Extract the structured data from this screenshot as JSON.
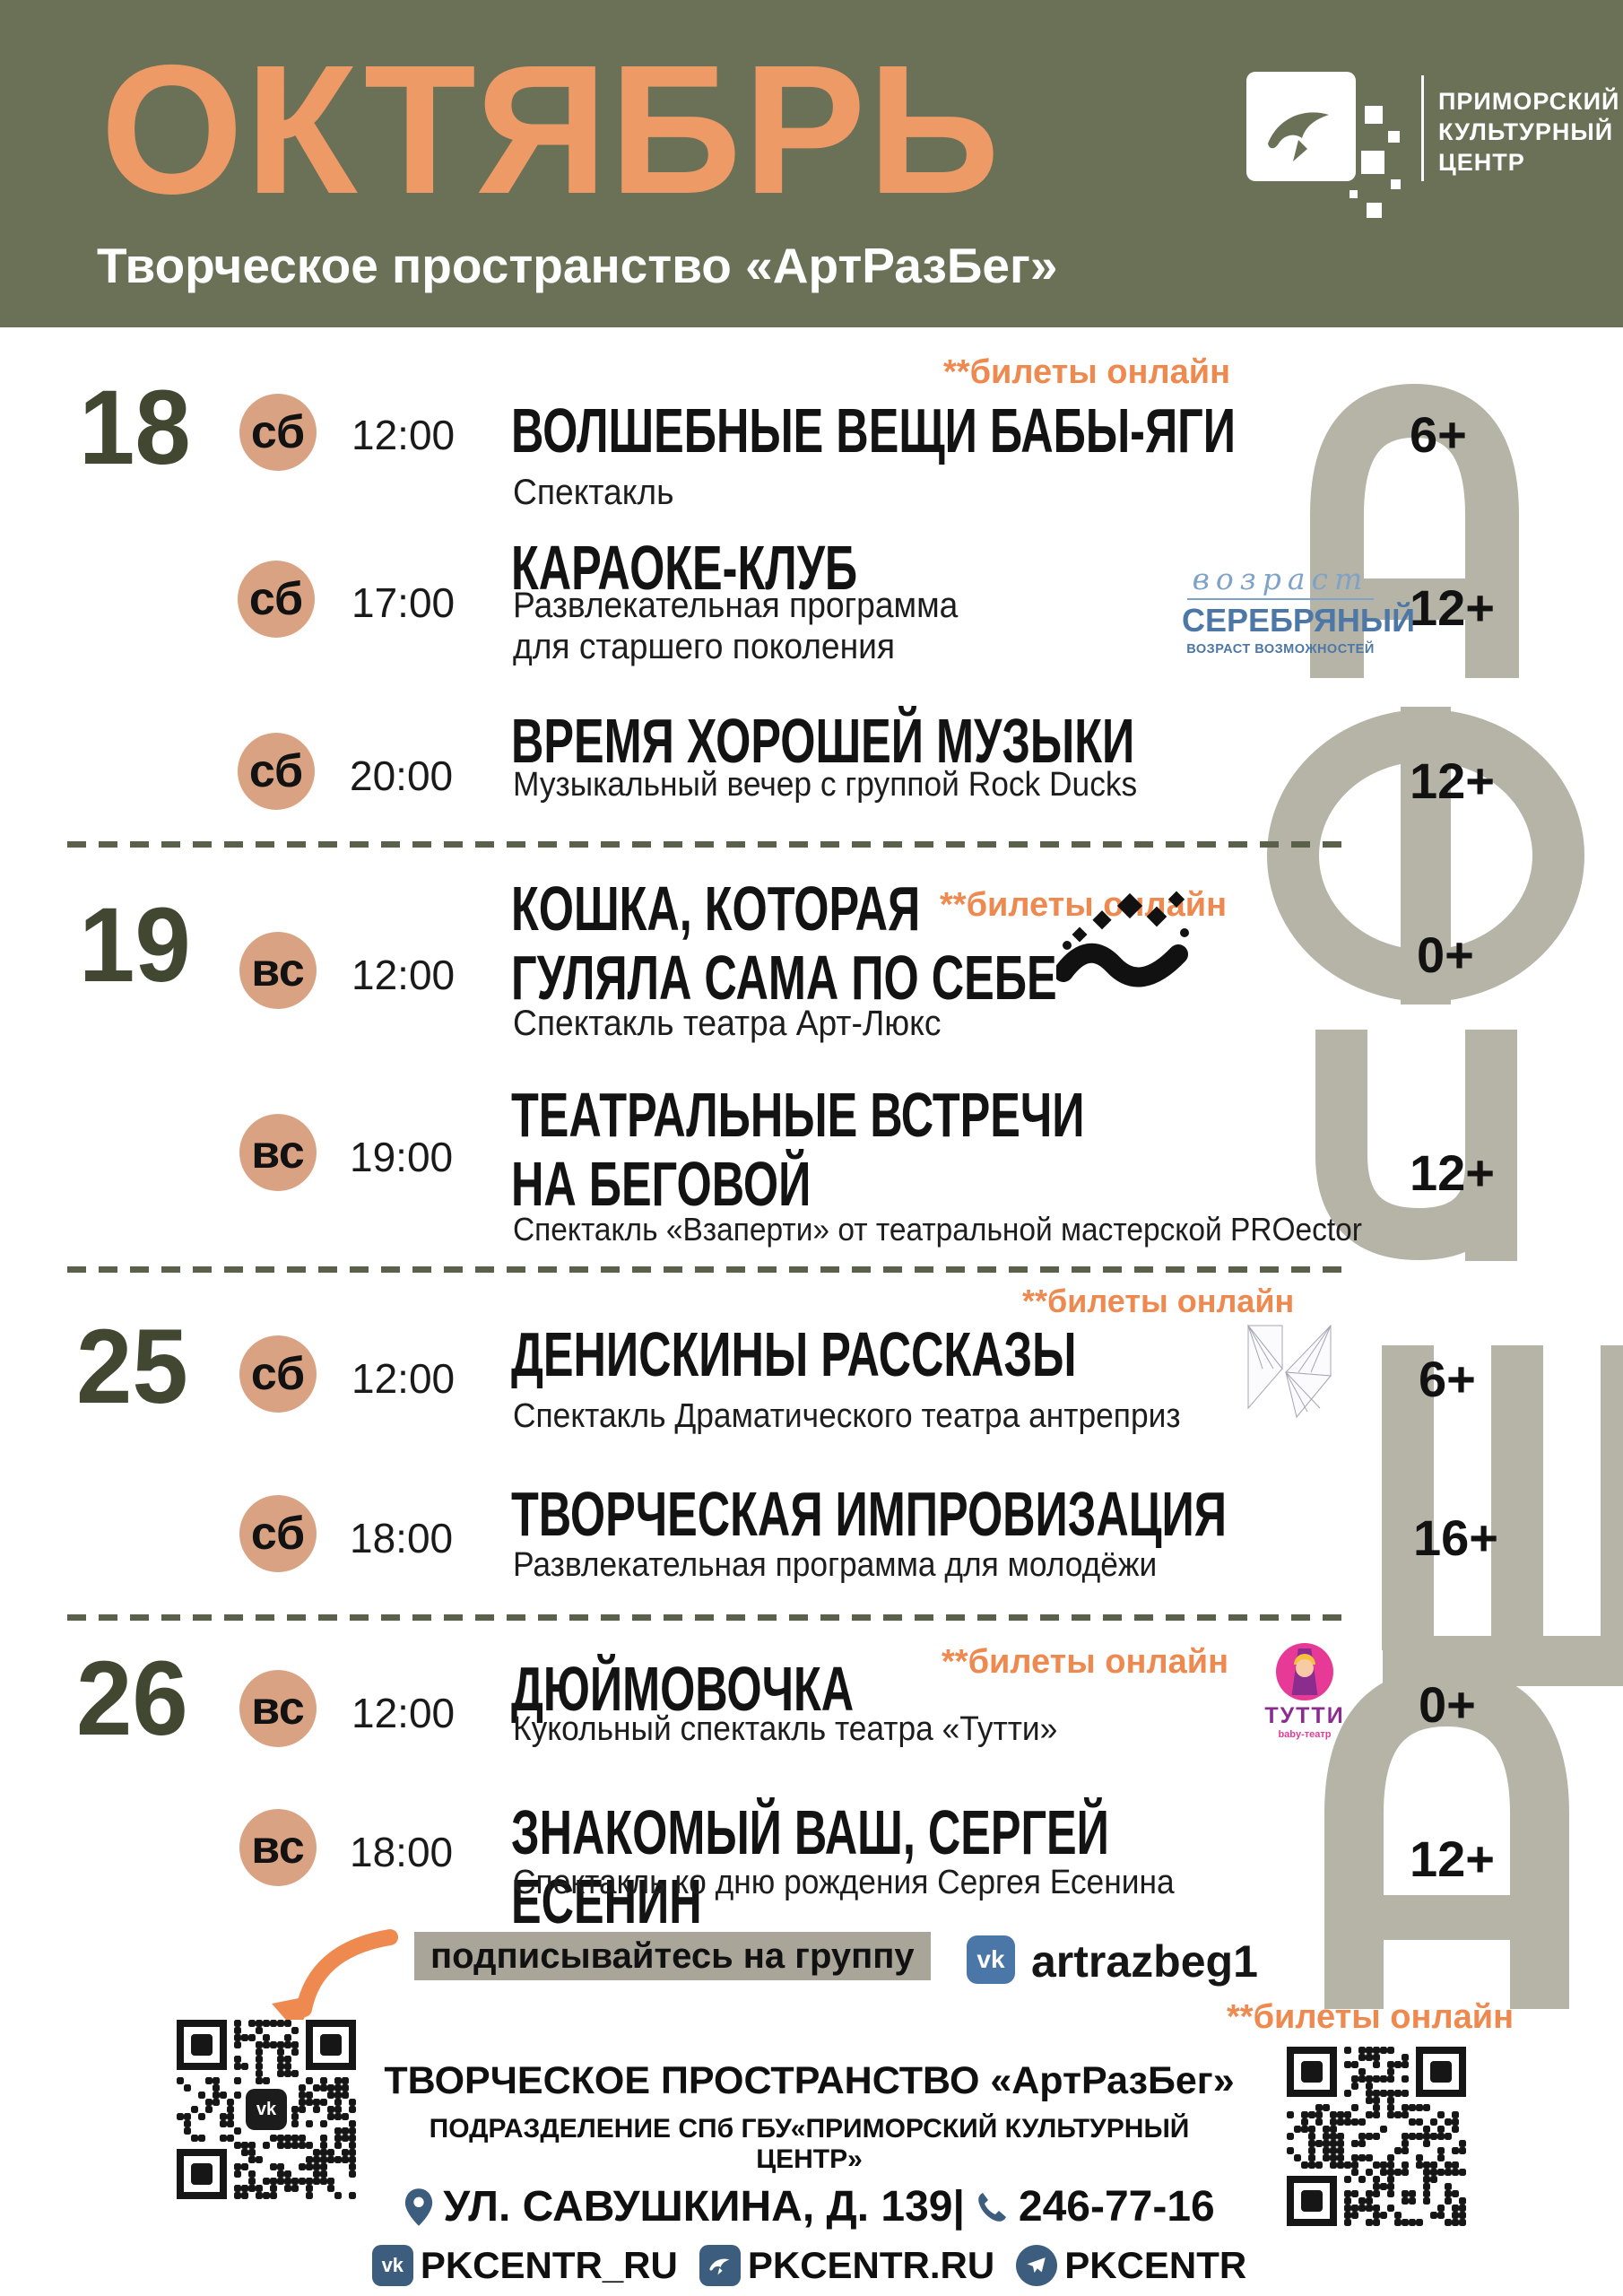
{
  "header": {
    "month": "ОКТЯБРЬ",
    "space_name": "Творческое пространство «АртРазБег»",
    "org_name": "ПРИМОРСКИЙ\nКУЛЬТУРНЫЙ\nЦЕНТР"
  },
  "tickets_note": "**билеты онлайн",
  "watermark_word": "афиша",
  "day_groups": [
    {
      "date": "18",
      "events": [
        {
          "day": "сб",
          "time": "12:00",
          "title": "ВОЛШЕБНЫЕ ВЕЩИ БАБЫ-ЯГИ",
          "subtitle": "Спектакль",
          "age": "6+"
        },
        {
          "day": "сб",
          "time": "17:00",
          "title": "КАРАОКЕ-КЛУБ",
          "subtitle": "Развлекательная программа\nдля старшего поколения",
          "age": "12+"
        },
        {
          "day": "сб",
          "time": "20:00",
          "title": "ВРЕМЯ ХОРОШЕЙ МУЗЫКИ",
          "subtitle": "Музыкальный вечер с группой Rock Ducks",
          "age": "12+"
        }
      ]
    },
    {
      "date": "19",
      "events": [
        {
          "day": "вс",
          "time": "12:00",
          "title": "КОШКА, КОТОРАЯ\nГУЛЯЛА САМА ПО СЕБЕ",
          "subtitle": "Спектакль театра Арт-Люкс",
          "age": "0+"
        },
        {
          "day": "вс",
          "time": "19:00",
          "title": "ТЕАТРАЛЬНЫЕ ВСТРЕЧИ\nНА БЕГОВОЙ",
          "subtitle": "Спектакль «Взаперти» от театральной мастерской PROector",
          "age": "12+"
        }
      ]
    },
    {
      "date": "25",
      "events": [
        {
          "day": "сб",
          "time": "12:00",
          "title": "ДЕНИСКИНЫ РАССКАЗЫ",
          "subtitle": "Спектакль Драматического театра антреприз",
          "age": "6+"
        },
        {
          "day": "сб",
          "time": "18:00",
          "title": "ТВОРЧЕСКАЯ ИМПРОВИЗАЦИЯ",
          "subtitle": "Развлекательная программа для молодёжи",
          "age": "16+"
        }
      ]
    },
    {
      "date": "26",
      "events": [
        {
          "day": "вс",
          "time": "12:00",
          "title": "ДЮЙМОВОЧКА",
          "subtitle": "Кукольный спектакль театра «Тутти»",
          "age": "0+"
        },
        {
          "day": "вс",
          "time": "18:00",
          "title": "ЗНАКОМЫЙ ВАШ, СЕРГЕЙ ЕСЕНИН",
          "subtitle": "Спектакль ко дню рождения Сергея Есенина",
          "age": "12+"
        }
      ]
    }
  ],
  "partner_logos": {
    "silver_age": {
      "script": "возраст",
      "main": "СЕРЕБРЯНЫЙ",
      "sub": "ВОЗРАСТ ВОЗМОЖНОСТЕЙ"
    },
    "tutti": {
      "name": "ТУТТИ",
      "sub": "baby-театр"
    }
  },
  "footer": {
    "subscribe_label": "подписывайтесь на группу",
    "vk_icon_label": "vk",
    "vk_handle": "artrazbeg1",
    "org_title": "ТВОРЧЕСКОЕ ПРОСТРАНСТВО «АртРазБег»",
    "org_subtitle": "ПОДРАЗДЕЛЕНИЕ СПб ГБУ«ПРИМОРСКИЙ КУЛЬТУРНЫЙ ЦЕНТР»",
    "address": "УЛ. САВУШКИНА, Д. 139|",
    "phone": "246-77-16",
    "links": [
      {
        "icon": "vk-icon",
        "label": "PKCENTR_RU"
      },
      {
        "icon": "bird-icon",
        "label": "PKCENTR.RU"
      },
      {
        "icon": "telegram-icon",
        "label": "PKCENTR"
      }
    ]
  },
  "colors": {
    "header_olive": "#6b7157",
    "month_orange": "#ed9a66",
    "tickets_orange": "#ee8a50",
    "badge_tan": "#d9a383",
    "date_olive": "#424731",
    "watermark_gray": "#b6b4a6",
    "vk_blue": "#4a76a8",
    "footer_steel_blue": "#3d5d7e",
    "silver_age_blue": "#4c77a6",
    "tutti_pink": "#e63a96",
    "tutti_purple": "#8a2d8f"
  }
}
